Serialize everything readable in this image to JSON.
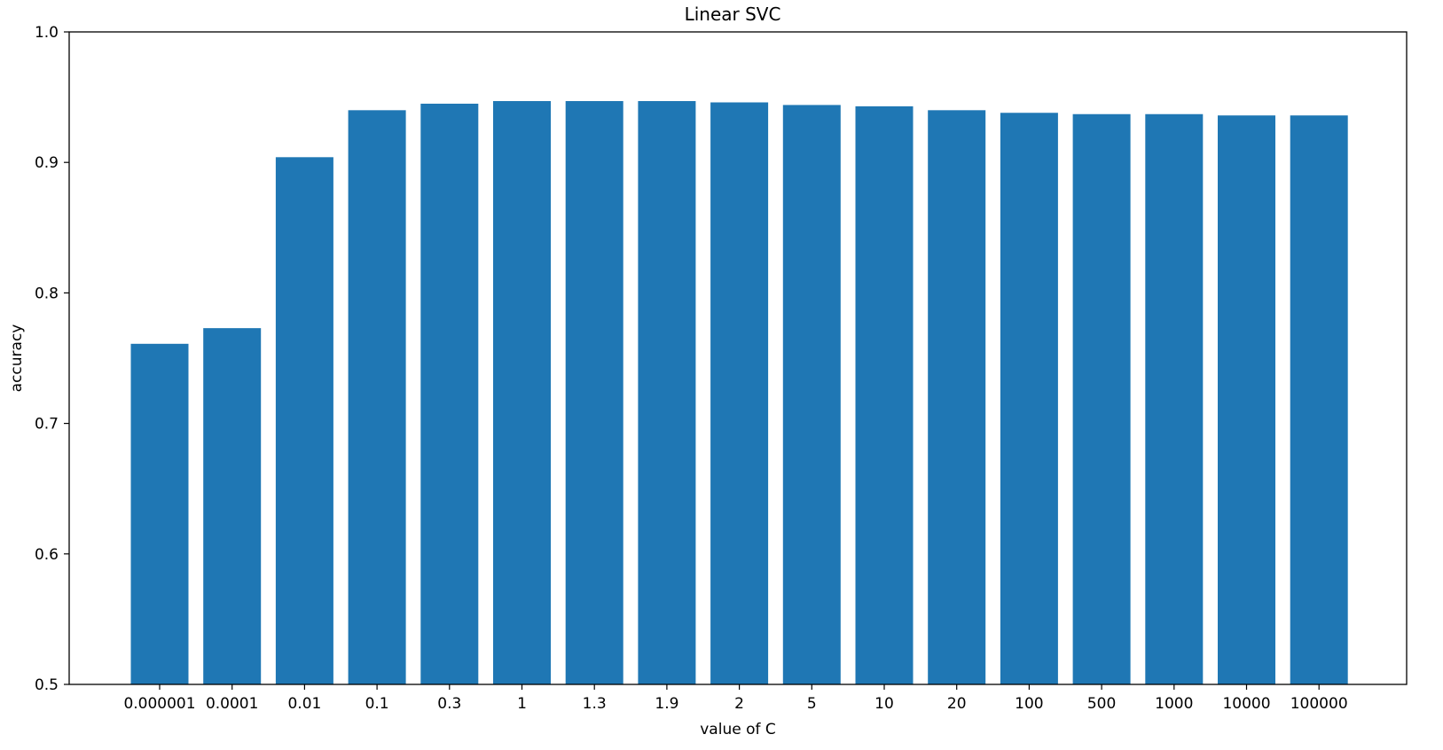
{
  "chart_data": {
    "type": "bar",
    "title": "Linear SVC",
    "xlabel": "value of C",
    "ylabel": "accuracy",
    "categories": [
      "0.000001",
      "0.0001",
      "0.01",
      "0.1",
      "0.3",
      "1",
      "1.3",
      "1.9",
      "2",
      "5",
      "10",
      "20",
      "100",
      "500",
      "1000",
      "10000",
      "100000"
    ],
    "values": [
      0.761,
      0.773,
      0.904,
      0.94,
      0.945,
      0.947,
      0.947,
      0.947,
      0.946,
      0.944,
      0.943,
      0.94,
      0.938,
      0.937,
      0.937,
      0.936,
      0.936
    ],
    "ylim": [
      0.5,
      1.0
    ],
    "yticks": [
      "0.5",
      "0.6",
      "0.7",
      "0.8",
      "0.9",
      "1.0"
    ],
    "bar_color": "#1f77b4",
    "grid": false,
    "legend": "none"
  }
}
